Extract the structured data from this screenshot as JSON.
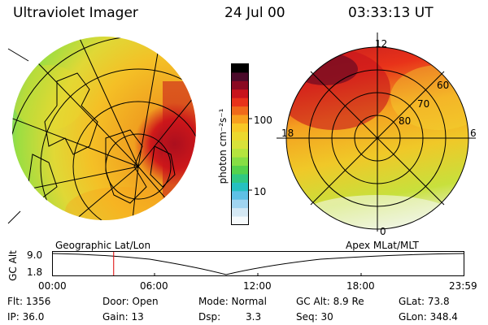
{
  "header": {
    "title": "Ultraviolet Imager",
    "date": "24 Jul 00",
    "time": "03:33:13 UT"
  },
  "colorbar": {
    "label": "photon cm⁻²s⁻¹",
    "ticks": [
      "100",
      "10"
    ],
    "colors": [
      "#000000",
      "#4b0a2a",
      "#8a0a22",
      "#c8141c",
      "#e8321a",
      "#f06a1a",
      "#f8a01e",
      "#f8c826",
      "#ecd92e",
      "#d8e23a",
      "#b4e43e",
      "#86de44",
      "#54d24c",
      "#30c882",
      "#26c0c0",
      "#5ec0e6",
      "#a0d4f0",
      "#d4e8f4",
      "#f6fafc"
    ]
  },
  "left_image": {
    "caption": "Geographic Lat/Lon"
  },
  "right_image": {
    "caption": "Apex MLat/MLT",
    "lat_labels": [
      "60",
      "70",
      "80"
    ],
    "mlt_labels": {
      "noon": "12",
      "dusk": "18",
      "dawn": "6",
      "midnight": "0"
    }
  },
  "altitude_plot": {
    "ylabel": "GC Alt",
    "yticks": [
      "9.0",
      "1.8"
    ],
    "xticks": [
      "00:00",
      "06:00",
      "12:00",
      "18:00",
      "23:59"
    ],
    "marker_time": "03:33"
  },
  "info": {
    "flt": "Flt: 1356",
    "ip": "IP: 36.0",
    "door": "Door: Open",
    "gain": "Gain: 13",
    "mode": "Mode: Normal",
    "dsp_label": "Dsp:",
    "dsp_value": "3.3",
    "gcalt": "GC Alt: 8.9 Re",
    "seq": "Seq: 30",
    "glat": "GLat: 73.8",
    "glon": "GLon: 348.4"
  }
}
